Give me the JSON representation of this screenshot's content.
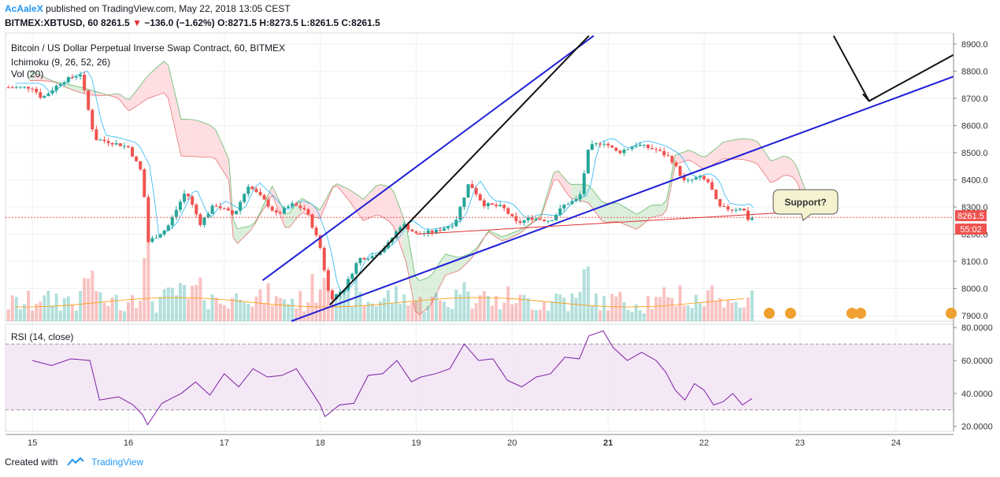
{
  "header": {
    "author": "AcAaleX",
    "published_text": "published on TradingView.com, May 22, 2018 13:05 CEST",
    "symbol": "BITMEX:XBTUSD, 60",
    "last": "8261.5",
    "change": "−136.0 (−1.62%)",
    "ohlc": "O:8271.5 H:8273.5 L:8261.5 C:8261.5"
  },
  "legend": {
    "title": "Bitcoin / US Dollar Perpetual Inverse Swap Contract, 60, BITMEX",
    "ichimoku": "Ichimoku (9, 26, 52, 26)",
    "volume": "Vol (20)",
    "rsi": "RSI (14, close)"
  },
  "annotation": {
    "callout": "Support?"
  },
  "price_tag": {
    "value": "8261.5",
    "countdown": "55:02"
  },
  "footer": {
    "created_with": "Created with",
    "brand": "TradingView"
  },
  "colors": {
    "up": "#26a69a",
    "down": "#ef5350",
    "trend": "#1f1fd6",
    "rsi": "#7b1fa2",
    "cloud_green": "#c8e6c9",
    "cloud_red": "#ffcdd2"
  },
  "chart_data": {
    "type": "line",
    "x_ticks": [
      "15",
      "16",
      "17",
      "18",
      "19",
      "20",
      "21",
      "22",
      "23",
      "24"
    ],
    "price_ticks": [
      "8900.0",
      "8800.0",
      "8700.0",
      "8600.0",
      "8500.0",
      "8400.0",
      "8300.0",
      "8200.0",
      "8100.0",
      "8000.0",
      "7900.0"
    ],
    "price_range": [
      7880,
      8940
    ],
    "rsi_ticks": [
      "80.0000",
      "60.0000",
      "40.0000",
      "20.0000"
    ],
    "rsi_range": [
      17,
      82
    ],
    "rsi_bands": [
      70,
      30
    ],
    "price_close": [
      {
        "t": 15.0,
        "v": 8740
      },
      {
        "t": 15.1,
        "v": 8700
      },
      {
        "t": 15.3,
        "v": 8760
      },
      {
        "t": 15.5,
        "v": 8790
      },
      {
        "t": 15.65,
        "v": 8550
      },
      {
        "t": 15.8,
        "v": 8540
      },
      {
        "t": 16.0,
        "v": 8520
      },
      {
        "t": 16.15,
        "v": 8420
      },
      {
        "t": 16.2,
        "v": 8170
      },
      {
        "t": 16.4,
        "v": 8220
      },
      {
        "t": 16.6,
        "v": 8360
      },
      {
        "t": 16.75,
        "v": 8240
      },
      {
        "t": 16.9,
        "v": 8310
      },
      {
        "t": 17.1,
        "v": 8270
      },
      {
        "t": 17.25,
        "v": 8380
      },
      {
        "t": 17.4,
        "v": 8330
      },
      {
        "t": 17.55,
        "v": 8270
      },
      {
        "t": 17.7,
        "v": 8310
      },
      {
        "t": 17.85,
        "v": 8290
      },
      {
        "t": 17.95,
        "v": 8200
      },
      {
        "t": 18.0,
        "v": 8150
      },
      {
        "t": 18.1,
        "v": 7960
      },
      {
        "t": 18.25,
        "v": 8000
      },
      {
        "t": 18.4,
        "v": 8110
      },
      {
        "t": 18.55,
        "v": 8120
      },
      {
        "t": 18.7,
        "v": 8160
      },
      {
        "t": 18.85,
        "v": 8240
      },
      {
        "t": 19.0,
        "v": 8200
      },
      {
        "t": 19.2,
        "v": 8210
      },
      {
        "t": 19.4,
        "v": 8240
      },
      {
        "t": 19.55,
        "v": 8390
      },
      {
        "t": 19.7,
        "v": 8310
      },
      {
        "t": 19.9,
        "v": 8300
      },
      {
        "t": 20.05,
        "v": 8240
      },
      {
        "t": 20.2,
        "v": 8260
      },
      {
        "t": 20.4,
        "v": 8250
      },
      {
        "t": 20.55,
        "v": 8310
      },
      {
        "t": 20.7,
        "v": 8330
      },
      {
        "t": 20.8,
        "v": 8520
      },
      {
        "t": 20.95,
        "v": 8540
      },
      {
        "t": 21.1,
        "v": 8500
      },
      {
        "t": 21.3,
        "v": 8530
      },
      {
        "t": 21.5,
        "v": 8510
      },
      {
        "t": 21.65,
        "v": 8480
      },
      {
        "t": 21.8,
        "v": 8390
      },
      {
        "t": 21.95,
        "v": 8410
      },
      {
        "t": 22.05,
        "v": 8390
      },
      {
        "t": 22.15,
        "v": 8300
      },
      {
        "t": 22.3,
        "v": 8290
      },
      {
        "t": 22.4,
        "v": 8300
      },
      {
        "t": 22.45,
        "v": 8255
      },
      {
        "t": 22.52,
        "v": 8261.5
      }
    ],
    "rsi": [
      {
        "t": 15.0,
        "v": 60
      },
      {
        "t": 15.2,
        "v": 57
      },
      {
        "t": 15.4,
        "v": 61
      },
      {
        "t": 15.6,
        "v": 60
      },
      {
        "t": 15.7,
        "v": 36
      },
      {
        "t": 15.9,
        "v": 38
      },
      {
        "t": 16.05,
        "v": 33
      },
      {
        "t": 16.15,
        "v": 27
      },
      {
        "t": 16.2,
        "v": 21
      },
      {
        "t": 16.35,
        "v": 34
      },
      {
        "t": 16.55,
        "v": 40
      },
      {
        "t": 16.7,
        "v": 47
      },
      {
        "t": 16.85,
        "v": 39
      },
      {
        "t": 17.0,
        "v": 52
      },
      {
        "t": 17.15,
        "v": 44
      },
      {
        "t": 17.3,
        "v": 55
      },
      {
        "t": 17.45,
        "v": 50
      },
      {
        "t": 17.6,
        "v": 51
      },
      {
        "t": 17.75,
        "v": 55
      },
      {
        "t": 17.9,
        "v": 42
      },
      {
        "t": 18.0,
        "v": 33
      },
      {
        "t": 18.05,
        "v": 26
      },
      {
        "t": 18.2,
        "v": 33
      },
      {
        "t": 18.35,
        "v": 34
      },
      {
        "t": 18.5,
        "v": 51
      },
      {
        "t": 18.65,
        "v": 52
      },
      {
        "t": 18.8,
        "v": 60
      },
      {
        "t": 18.95,
        "v": 47
      },
      {
        "t": 19.05,
        "v": 50
      },
      {
        "t": 19.2,
        "v": 52
      },
      {
        "t": 19.35,
        "v": 55
      },
      {
        "t": 19.5,
        "v": 70
      },
      {
        "t": 19.65,
        "v": 60
      },
      {
        "t": 19.8,
        "v": 61
      },
      {
        "t": 19.95,
        "v": 48
      },
      {
        "t": 20.1,
        "v": 44
      },
      {
        "t": 20.25,
        "v": 50
      },
      {
        "t": 20.4,
        "v": 52
      },
      {
        "t": 20.55,
        "v": 62
      },
      {
        "t": 20.7,
        "v": 61
      },
      {
        "t": 20.8,
        "v": 75
      },
      {
        "t": 20.95,
        "v": 78
      },
      {
        "t": 21.05,
        "v": 68
      },
      {
        "t": 21.2,
        "v": 60
      },
      {
        "t": 21.35,
        "v": 65
      },
      {
        "t": 21.5,
        "v": 60
      },
      {
        "t": 21.6,
        "v": 53
      },
      {
        "t": 21.7,
        "v": 42
      },
      {
        "t": 21.8,
        "v": 36
      },
      {
        "t": 21.9,
        "v": 46
      },
      {
        "t": 22.0,
        "v": 42
      },
      {
        "t": 22.1,
        "v": 33
      },
      {
        "t": 22.2,
        "v": 35
      },
      {
        "t": 22.3,
        "v": 40
      },
      {
        "t": 22.4,
        "v": 33
      },
      {
        "t": 22.5,
        "v": 37
      }
    ],
    "trendlines": [
      {
        "color": "blue",
        "t1": 17.4,
        "p1": 8030,
        "t2": 20.85,
        "p2": 8930
      },
      {
        "color": "blue",
        "t1": 17.7,
        "p1": 7880,
        "t2": 24.6,
        "p2": 8780
      },
      {
        "color": "black",
        "t1": 18.1,
        "p1": 7940,
        "t2": 20.8,
        "p2": 8930
      },
      {
        "color": "black",
        "t1": 23.35,
        "p1": 8930,
        "t2": 23.72,
        "p2": 8690
      },
      {
        "color": "black",
        "t1": 23.72,
        "p1": 8690,
        "t2": 24.6,
        "p2": 8860
      },
      {
        "color": "red",
        "t1": 19.0,
        "p1": 8200,
        "t2": 23.1,
        "p2": 8285
      }
    ]
  }
}
